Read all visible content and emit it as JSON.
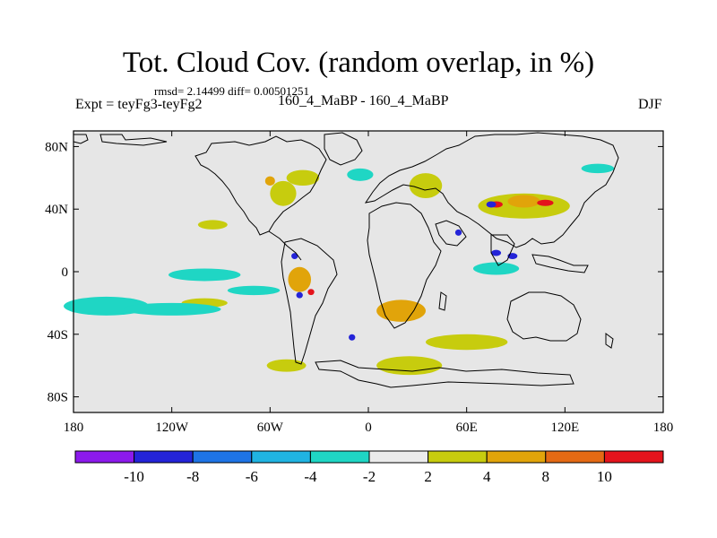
{
  "header": {
    "title": "Tot. Cloud Cov. (random overlap, in %)",
    "stats": "rmsd= 2.14499 diff= 0.00501251",
    "experiment": "Expt = teyFg3-teyFg2",
    "subtitle": "160_4_MaBP - 160_4_MaBP",
    "season": "DJF"
  },
  "map": {
    "type": "contour-map",
    "projection": "cylindrical equidistant",
    "lon_range": [
      -180,
      180
    ],
    "lat_range": [
      -90,
      90
    ],
    "lat_ticks": [
      {
        "value": 80,
        "label": "80N"
      },
      {
        "value": 40,
        "label": "40N"
      },
      {
        "value": 0,
        "label": "0"
      },
      {
        "value": -40,
        "label": "40S"
      },
      {
        "value": -80,
        "label": "80S"
      }
    ],
    "lon_ticks": [
      {
        "value": -180,
        "label": "180"
      },
      {
        "value": -120,
        "label": "120W"
      },
      {
        "value": -60,
        "label": "60W"
      },
      {
        "value": 0,
        "label": "0"
      },
      {
        "value": 60,
        "label": "60E"
      },
      {
        "value": 120,
        "label": "120E"
      },
      {
        "value": 180,
        "label": "180"
      }
    ]
  },
  "colorbar": {
    "bins": [
      {
        "color": "#8c1aec"
      },
      {
        "color": "#2424d8"
      },
      {
        "color": "#1e74e6"
      },
      {
        "color": "#20b4e2"
      },
      {
        "color": "#1fd6c4"
      },
      {
        "color": "#ebebeb"
      },
      {
        "color": "#c7cc0e"
      },
      {
        "color": "#e1a40a"
      },
      {
        "color": "#e46a14"
      },
      {
        "color": "#e4141c"
      }
    ],
    "labels": [
      "-10",
      "-8",
      "-6",
      "-4",
      "-2",
      "2",
      "4",
      "8",
      "10"
    ]
  },
  "fields": {
    "cyan": [
      {
        "lon": -160,
        "lat": -22,
        "rlon": 26,
        "rlat": 6
      },
      {
        "lon": -120,
        "lat": -24,
        "rlon": 30,
        "rlat": 4
      },
      {
        "lon": -100,
        "lat": -2,
        "rlon": 22,
        "rlat": 4
      },
      {
        "lon": -70,
        "lat": -12,
        "rlon": 16,
        "rlat": 3
      },
      {
        "lon": 78,
        "lat": 2,
        "rlon": 14,
        "rlat": 4
      },
      {
        "lon": -5,
        "lat": 62,
        "rlon": 8,
        "rlat": 4
      },
      {
        "lon": 140,
        "lat": 66,
        "rlon": 10,
        "rlat": 3
      }
    ],
    "yellow": [
      {
        "lon": -95,
        "lat": 30,
        "rlon": 9,
        "rlat": 3
      },
      {
        "lon": -100,
        "lat": -20,
        "rlon": 14,
        "rlat": 3
      },
      {
        "lon": -50,
        "lat": -60,
        "rlon": 12,
        "rlat": 4
      },
      {
        "lon": 35,
        "lat": 55,
        "rlon": 10,
        "rlat": 8
      },
      {
        "lon": 95,
        "lat": 42,
        "rlon": 28,
        "rlat": 8
      },
      {
        "lon": 60,
        "lat": -45,
        "rlon": 25,
        "rlat": 5
      },
      {
        "lon": 25,
        "lat": -60,
        "rlon": 20,
        "rlat": 6
      },
      {
        "lon": -40,
        "lat": 60,
        "rlon": 10,
        "rlat": 5
      },
      {
        "lon": -52,
        "lat": 50,
        "rlon": 8,
        "rlat": 8
      }
    ],
    "orange": [
      {
        "lon": 20,
        "lat": -25,
        "rlon": 15,
        "rlat": 7
      },
      {
        "lon": -42,
        "lat": -5,
        "rlon": 7,
        "rlat": 8
      },
      {
        "lon": 95,
        "lat": 45,
        "rlon": 10,
        "rlat": 4
      },
      {
        "lon": -60,
        "lat": 58,
        "rlon": 3,
        "rlat": 3
      }
    ],
    "red": [
      {
        "lon": -35,
        "lat": -13,
        "rlon": 2,
        "rlat": 2
      },
      {
        "lon": 78,
        "lat": 43,
        "rlon": 4,
        "rlat": 2
      },
      {
        "lon": 108,
        "lat": 44,
        "rlon": 5,
        "rlat": 2
      }
    ],
    "blue": [
      {
        "lon": -45,
        "lat": 10,
        "rlon": 2,
        "rlat": 2
      },
      {
        "lon": -42,
        "lat": -15,
        "rlon": 2,
        "rlat": 2
      },
      {
        "lon": 78,
        "lat": 12,
        "rlon": 3,
        "rlat": 2
      },
      {
        "lon": 88,
        "lat": 10,
        "rlon": 3,
        "rlat": 2
      },
      {
        "lon": 55,
        "lat": 25,
        "rlon": 2,
        "rlat": 2
      },
      {
        "lon": -10,
        "lat": -42,
        "rlon": 2,
        "rlat": 2
      },
      {
        "lon": 75,
        "lat": 43,
        "rlon": 3,
        "rlat": 2
      }
    ]
  }
}
